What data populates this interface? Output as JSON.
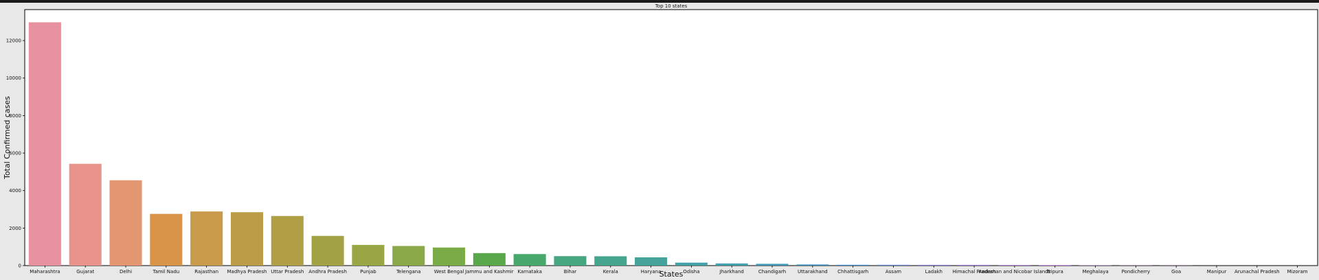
{
  "chart_data": {
    "type": "bar",
    "title": "Top 10 states",
    "xlabel": "States",
    "ylabel": "Total Confirmed cases",
    "ylim": [
      0,
      13650
    ],
    "yticks": [
      0,
      2000,
      4000,
      6000,
      8000,
      10000,
      12000
    ],
    "grid": false,
    "categories": [
      "Maharashtra",
      "Gujarat",
      "Delhi",
      "Tamil Nadu",
      "Rajasthan",
      "Madhya Pradesh",
      "Uttar Pradesh",
      "Andhra Pradesh",
      "Punjab",
      "Telengana",
      "West Bengal",
      "Jammu and Kashmir",
      "Karnataka",
      "Bihar",
      "Kerala",
      "Haryana",
      "Odisha",
      "Jharkhand",
      "Chandigarh",
      "Uttarakhand",
      "Chhattisgarh",
      "Assam",
      "Ladakh",
      "Himachal Pradesh",
      "Andaman and Nicobar Islands",
      "Tripura",
      "Meghalaya",
      "Pondicherry",
      "Goa",
      "Manipur",
      "Arunachal Pradesh",
      "Mizoram"
    ],
    "values": [
      12974,
      5428,
      4549,
      2757,
      2886,
      2846,
      2645,
      1583,
      1102,
      1044,
      963,
      666,
      614,
      503,
      497,
      439,
      157,
      115,
      94,
      60,
      43,
      43,
      41,
      40,
      33,
      29,
      12,
      9,
      7,
      2,
      1,
      1
    ],
    "colors": [
      "#e8919f",
      "#e8948c",
      "#e3966f",
      "#d9944a",
      "#c99a4a",
      "#bd9c48",
      "#b09f45",
      "#a3a345",
      "#98a644",
      "#8aa846",
      "#79ab47",
      "#5ba84a",
      "#48a86c",
      "#46a680",
      "#45a48d",
      "#43a299",
      "#42a1a6",
      "#42a0ae",
      "#4098b6",
      "#3f93be",
      "#4a8fcb",
      "#6f89d6",
      "#8a86dc",
      "#a182e3",
      "#b27ee9",
      "#c07aef",
      "#cb78ef",
      "#d376ea",
      "#da74e0",
      "#e072d2",
      "#e474c0",
      "#e874ae"
    ]
  }
}
